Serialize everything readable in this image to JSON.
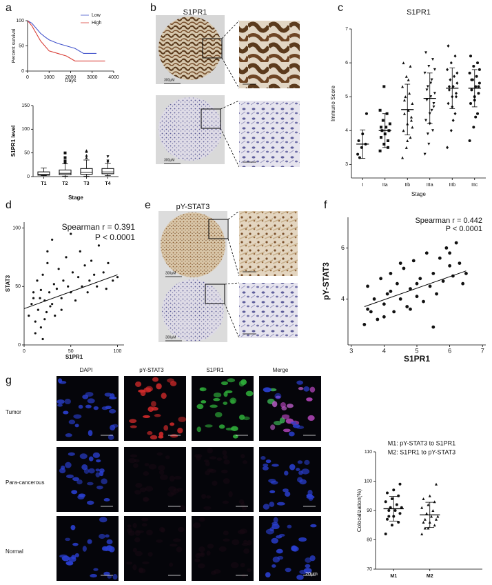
{
  "panel_labels": [
    "a",
    "b",
    "c",
    "d",
    "e",
    "f",
    "g"
  ],
  "ihc": {
    "titles": [
      "S1PR1",
      "pY-STAT3"
    ],
    "scale_label": "300μM"
  },
  "immunofluorescence": {
    "columns": [
      "DAPI",
      "pY-STAT3",
      "S1PR1",
      "Merge"
    ],
    "rows": [
      "Tumor",
      "Para-cancerous",
      "Normal"
    ],
    "scale_label": "20μm"
  },
  "chart_data": [
    {
      "type": "line",
      "ylabel": "Percent survival",
      "xlabel": "Days",
      "xlim": [
        0,
        4000
      ],
      "xticks": [
        0,
        1000,
        2000,
        3000,
        4000
      ],
      "ylim": [
        0,
        100
      ],
      "yticks": [
        0,
        50,
        100
      ],
      "legend": "top-right",
      "series": [
        {
          "name": "Low",
          "color": "#4455cc",
          "x": [
            0,
            200,
            400,
            600,
            800,
            1000,
            1400,
            1800,
            2200,
            2600,
            3200
          ],
          "values": [
            100,
            95,
            85,
            75,
            68,
            62,
            55,
            50,
            45,
            35,
            35
          ]
        },
        {
          "name": "High",
          "color": "#d9413a",
          "x": [
            0,
            200,
            400,
            600,
            800,
            1000,
            1400,
            1800,
            2000,
            2200,
            3600
          ],
          "values": [
            100,
            90,
            75,
            60,
            50,
            40,
            35,
            30,
            25,
            20,
            20
          ]
        }
      ]
    },
    {
      "type": "box",
      "ylabel": "S1PR1 level",
      "xlabel": "Stage",
      "categories": [
        "T1",
        "T2",
        "T3",
        "T4"
      ],
      "ylim": [
        0,
        150
      ],
      "yticks": [
        0,
        50,
        100,
        150
      ],
      "color": "#111",
      "markers": [
        "circle",
        "square",
        "triangle",
        "triangle-down"
      ],
      "boxes": [
        {
          "min": 2,
          "q1": 3,
          "median": 5,
          "q3": 10,
          "max": 18,
          "outliers": []
        },
        {
          "min": 1,
          "q1": 4,
          "median": 7,
          "q3": 14,
          "max": 27,
          "outliers": [
            30,
            33,
            40,
            50
          ]
        },
        {
          "min": 1,
          "q1": 5,
          "median": 9,
          "q3": 17,
          "max": 35,
          "outliers": [
            40,
            45,
            53,
            55
          ]
        },
        {
          "min": 2,
          "q1": 6,
          "median": 10,
          "q3": 17,
          "max": 28,
          "outliers": [
            30,
            33,
            42
          ]
        }
      ]
    },
    {
      "type": "dotplot",
      "title": "S1PR1",
      "ylabel": "Immuno Score",
      "xlabel": "Stage",
      "categories": [
        "I",
        "IIa",
        "IIb",
        "IIIa",
        "IIIb",
        "IIIc"
      ],
      "ylim": [
        2.6,
        7
      ],
      "yticks": [
        3,
        4,
        5,
        6,
        7
      ],
      "color": "#111",
      "markers": [
        "circle",
        "square",
        "triangle",
        "triangle-down",
        "diamond",
        "circle"
      ],
      "points": [
        [
          3.3,
          3.5,
          3.6,
          3.7,
          3.9,
          4.5,
          3.2
        ],
        [
          3.4,
          3.6,
          3.7,
          3.8,
          3.9,
          4.0,
          4.0,
          4.1,
          4.2,
          4.3,
          4.5,
          4.6,
          5.3,
          3.5,
          4.1
        ],
        [
          3.2,
          3.5,
          3.8,
          4.0,
          4.2,
          4.4,
          4.5,
          4.6,
          4.8,
          5.0,
          5.1,
          5.3,
          5.6,
          5.9,
          6.0,
          3.7,
          4.3,
          4.9,
          5.5,
          4.1
        ],
        [
          3.3,
          3.6,
          4.0,
          4.3,
          4.5,
          4.7,
          4.9,
          5.0,
          5.1,
          5.3,
          5.5,
          5.7,
          5.9,
          6.1,
          6.3,
          4.2,
          4.8,
          5.2,
          5.4,
          5.8,
          3.9,
          4.6
        ],
        [
          3.5,
          4.0,
          4.5,
          4.8,
          5.0,
          5.1,
          5.2,
          5.3,
          5.4,
          5.5,
          5.6,
          5.8,
          6.0,
          6.2,
          6.5,
          4.7,
          5.0,
          5.3,
          4.3,
          5.7
        ],
        [
          3.7,
          4.1,
          4.5,
          4.8,
          5.0,
          5.1,
          5.2,
          5.3,
          5.4,
          5.5,
          5.6,
          5.7,
          5.9,
          6.0,
          6.2,
          4.9,
          5.3,
          5.5,
          4.4,
          5.8
        ]
      ],
      "mean": [
        3.6,
        4.0,
        4.62,
        4.95,
        5.25,
        5.25
      ],
      "sd": [
        0.42,
        0.5,
        0.75,
        0.75,
        0.6,
        0.55
      ]
    },
    {
      "type": "scatter",
      "ylabel": "STAT3",
      "xlabel": "S1PR1",
      "xlim": [
        0,
        107
      ],
      "xticks": [
        0,
        50,
        100
      ],
      "ylim": [
        0,
        105
      ],
      "yticks": [
        0,
        50,
        100
      ],
      "color": "#111",
      "annotations": [
        "Spearman r = 0.391",
        "P < 0.0001"
      ],
      "x": [
        5,
        8,
        10,
        12,
        14,
        15,
        17,
        18,
        20,
        22,
        24,
        25,
        27,
        28,
        30,
        32,
        33,
        35,
        37,
        40,
        42,
        45,
        47,
        50,
        52,
        55,
        58,
        60,
        62,
        65,
        68,
        70,
        72,
        75,
        78,
        80,
        85,
        88,
        90,
        95,
        100,
        12,
        20,
        25,
        30,
        18,
        22,
        40,
        50,
        10
      ],
      "values": [
        25,
        35,
        45,
        20,
        55,
        30,
        40,
        15,
        60,
        38,
        28,
        70,
        45,
        33,
        90,
        52,
        25,
        48,
        65,
        40,
        55,
        75,
        50,
        45,
        62,
        38,
        58,
        80,
        50,
        68,
        45,
        55,
        72,
        60,
        50,
        85,
        62,
        48,
        70,
        55,
        58,
        10,
        5,
        80,
        35,
        47,
        22,
        30,
        95,
        40
      ],
      "fit": {
        "x": [
          0,
          100
        ],
        "values": [
          31,
          60
        ]
      }
    },
    {
      "type": "scatter",
      "ylabel": "pY-STAT3",
      "xlabel": "S1PR1",
      "xlim": [
        2.9,
        7.1
      ],
      "xticks": [
        3,
        4,
        5,
        6,
        7
      ],
      "ylim": [
        2.2,
        7.2
      ],
      "yticks": [
        4,
        6
      ],
      "color": "#111",
      "annotations": [
        "Spearman r = 0.442",
        "P < 0.0001"
      ],
      "x": [
        3.4,
        3.5,
        3.6,
        3.7,
        3.8,
        3.9,
        4.0,
        4.1,
        4.2,
        4.3,
        4.4,
        4.5,
        4.6,
        4.7,
        4.8,
        4.9,
        5.0,
        5.1,
        5.2,
        5.3,
        5.4,
        5.5,
        5.6,
        5.7,
        5.8,
        5.9,
        6.0,
        6.1,
        6.2,
        6.3,
        6.4,
        6.5,
        3.5,
        4.0,
        4.5,
        5.0,
        5.5,
        6.0,
        4.2,
        4.8
      ],
      "values": [
        3.0,
        4.5,
        3.5,
        4.0,
        3.2,
        4.8,
        3.8,
        4.2,
        5.0,
        3.5,
        4.6,
        4.0,
        5.2,
        3.7,
        4.4,
        5.5,
        4.1,
        4.8,
        3.9,
        5.8,
        4.5,
        5.0,
        4.2,
        5.6,
        4.7,
        6.0,
        5.3,
        4.9,
        6.2,
        5.4,
        4.6,
        5.0,
        3.6,
        3.3,
        5.4,
        4.6,
        2.9,
        5.8,
        4.3,
        3.6
      ],
      "fit": {
        "x": [
          3.4,
          6.5
        ],
        "values": [
          3.7,
          5.1
        ]
      }
    },
    {
      "type": "dotplot",
      "ylabel": "Colocalization(%)",
      "categories": [
        "M1",
        "M2"
      ],
      "ylim": [
        70,
        110
      ],
      "yticks": [
        70,
        80,
        90,
        100,
        110
      ],
      "color": "#111",
      "legend_text": [
        "M1: pY-STAT3 to S1PR1",
        "M2: S1PR1 to pY-STAT3"
      ],
      "markers": [
        "circle",
        "triangle"
      ],
      "points": [
        [
          82,
          85,
          86,
          87,
          88,
          89,
          90,
          90,
          91,
          91,
          92,
          93,
          94,
          95,
          96,
          97,
          99,
          88
        ],
        [
          82,
          84,
          85,
          86,
          86,
          87,
          87,
          88,
          88,
          89,
          90,
          91,
          92,
          93,
          94,
          95,
          99,
          84
        ]
      ],
      "mean": [
        90.6,
        88.5
      ],
      "sd": [
        4.2,
        4.3
      ]
    }
  ]
}
